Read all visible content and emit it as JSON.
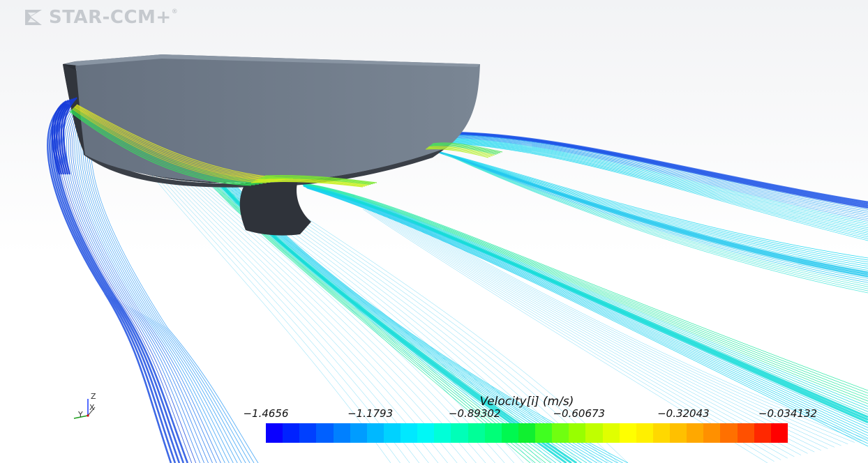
{
  "app": {
    "logo_text": "STAR-CCM+",
    "logo_mark": "®"
  },
  "triad": {
    "z_label": "Z",
    "y_label": "Y",
    "x_label": "X"
  },
  "legend": {
    "title": "Velocity[i] (m/s)",
    "ticks": [
      "−1.4656",
      "−1.1793",
      "−0.89302",
      "−0.60673",
      "−0.32043",
      "−0.034132"
    ],
    "min": -1.4656,
    "max": -0.034132,
    "colors": [
      "#0a00ff",
      "#0022ff",
      "#0040ff",
      "#0060ff",
      "#0080ff",
      "#009cff",
      "#00b8ff",
      "#00d2ff",
      "#00e8ff",
      "#00f8f6",
      "#00ffd8",
      "#00ffb8",
      "#00ff98",
      "#00ff78",
      "#00f850",
      "#10f030",
      "#40ff20",
      "#70ff10",
      "#98ff00",
      "#c0ff00",
      "#e0ff00",
      "#ffff00",
      "#fff000",
      "#ffd800",
      "#ffc000",
      "#ffa800",
      "#ff9000",
      "#ff7000",
      "#ff5000",
      "#ff2800",
      "#ff0000"
    ]
  },
  "colors": {
    "hull_side": "#2d3139",
    "hull_deck": "#6e7986",
    "hull_bottom": "#3a3f47",
    "background_top": "#f2f3f5",
    "background_bottom": "#ffffff"
  }
}
